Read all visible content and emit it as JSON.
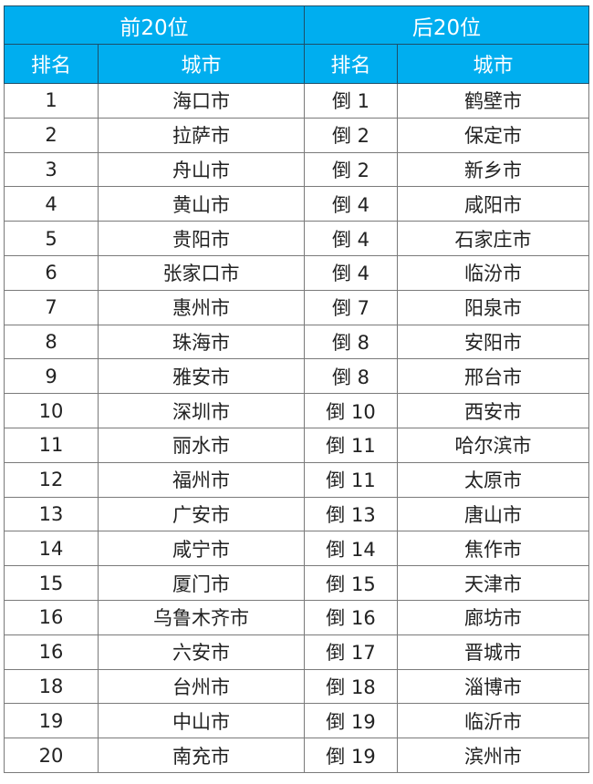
{
  "header": {
    "top20": "前20位",
    "bottom20": "后20位",
    "rank": "排名",
    "city": "城市"
  },
  "colors": {
    "header_bg": "#00aeef",
    "header_text": "#ffffff"
  },
  "rows": [
    {
      "rank": "1",
      "city": "海口市",
      "brank": "倒 1",
      "bcity": "鹤壁市"
    },
    {
      "rank": "2",
      "city": "拉萨市",
      "brank": "倒 2",
      "bcity": "保定市"
    },
    {
      "rank": "3",
      "city": "舟山市",
      "brank": "倒 2",
      "bcity": "新乡市"
    },
    {
      "rank": "4",
      "city": "黄山市",
      "brank": "倒 4",
      "bcity": "咸阳市"
    },
    {
      "rank": "5",
      "city": "贵阳市",
      "brank": "倒 4",
      "bcity": "石家庄市"
    },
    {
      "rank": "6",
      "city": "张家口市",
      "brank": "倒 4",
      "bcity": "临汾市"
    },
    {
      "rank": "7",
      "city": "惠州市",
      "brank": "倒 7",
      "bcity": "阳泉市"
    },
    {
      "rank": "8",
      "city": "珠海市",
      "brank": "倒 8",
      "bcity": "安阳市"
    },
    {
      "rank": "9",
      "city": "雅安市",
      "brank": "倒 8",
      "bcity": "邢台市"
    },
    {
      "rank": "10",
      "city": "深圳市",
      "brank": "倒 10",
      "bcity": "西安市"
    },
    {
      "rank": "11",
      "city": "丽水市",
      "brank": "倒 11",
      "bcity": "哈尔滨市"
    },
    {
      "rank": "12",
      "city": "福州市",
      "brank": "倒 11",
      "bcity": "太原市"
    },
    {
      "rank": "13",
      "city": "广安市",
      "brank": "倒 13",
      "bcity": "唐山市"
    },
    {
      "rank": "14",
      "city": "咸宁市",
      "brank": "倒 14",
      "bcity": "焦作市"
    },
    {
      "rank": "15",
      "city": "厦门市",
      "brank": "倒 15",
      "bcity": "天津市"
    },
    {
      "rank": "16",
      "city": "乌鲁木齐市",
      "brank": "倒 16",
      "bcity": "廊坊市"
    },
    {
      "rank": "16",
      "city": "六安市",
      "brank": "倒 17",
      "bcity": "晋城市"
    },
    {
      "rank": "18",
      "city": "台州市",
      "brank": "倒 18",
      "bcity": "淄博市"
    },
    {
      "rank": "19",
      "city": "中山市",
      "brank": "倒 19",
      "bcity": "临沂市"
    },
    {
      "rank": "20",
      "city": "南充市",
      "brank": "倒 19",
      "bcity": "滨州市"
    }
  ]
}
